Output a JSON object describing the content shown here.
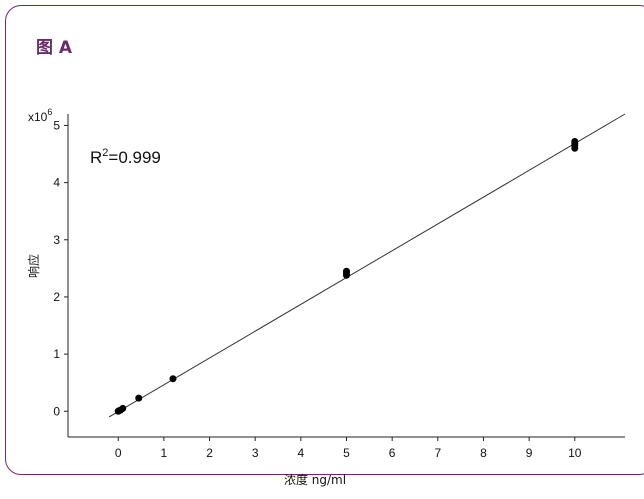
{
  "figure_title": "图 A",
  "chart_data": {
    "type": "scatter",
    "xlabel": "浓度 ng/ml",
    "ylabel": "响应",
    "y_multiplier": "x10",
    "y_multiplier_exp": "6",
    "annotation": {
      "base": "R",
      "sup": "2",
      "rest": "=0.999"
    },
    "xlim": [
      -1.1,
      11.1
    ],
    "ylim": [
      -0.45,
      5.2
    ],
    "x_ticks": [
      0,
      1,
      2,
      3,
      4,
      5,
      6,
      7,
      8,
      9,
      10
    ],
    "y_ticks": [
      0,
      1,
      2,
      3,
      4,
      5
    ],
    "points": {
      "x": [
        0.0,
        0.02,
        0.05,
        0.1,
        0.45,
        1.2,
        5.0,
        5.0,
        5.0,
        10.0,
        10.0,
        10.0,
        10.0
      ],
      "y": [
        0.0,
        0.01,
        0.02,
        0.05,
        0.23,
        0.57,
        2.38,
        2.42,
        2.45,
        4.6,
        4.65,
        4.68,
        4.72
      ]
    },
    "fit_line": {
      "x": [
        -0.2,
        11.1
      ],
      "y": [
        -0.1,
        5.2
      ]
    },
    "colors": {
      "points": "#000000",
      "line": "#333333",
      "frame": "#6b2c6e"
    }
  }
}
